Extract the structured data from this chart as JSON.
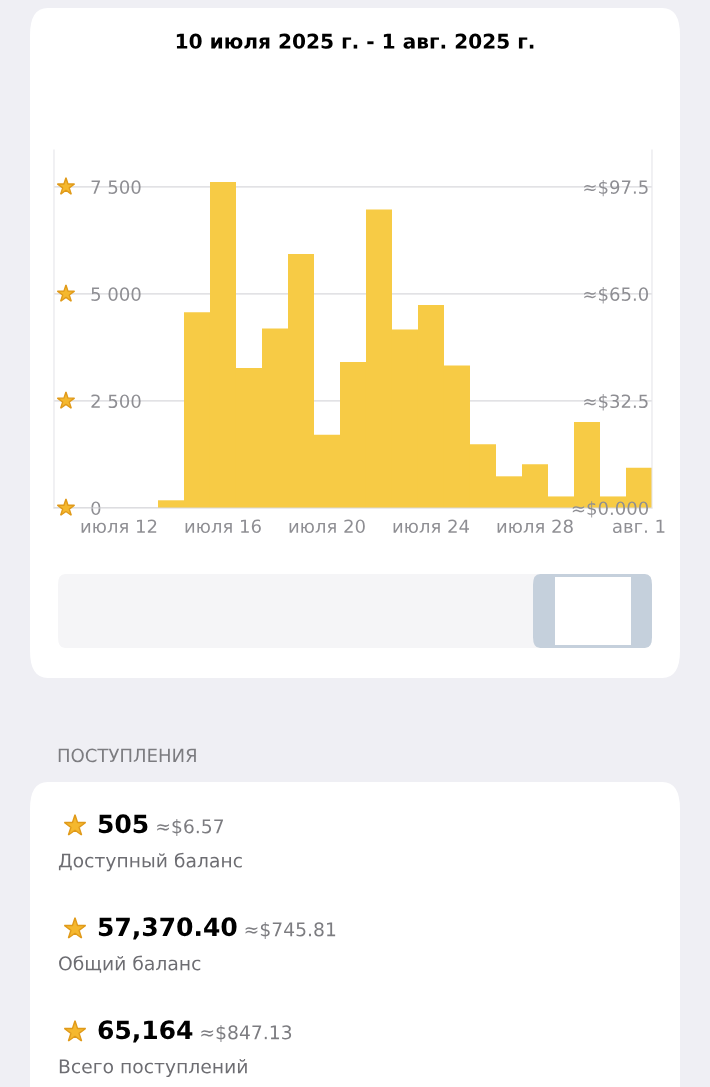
{
  "chart_data": [
    {
      "type": "bar",
      "title": "10 июля 2025 г. - 1 авг. 2025 г.",
      "categories": [
        null,
        null,
        "июля 12",
        null,
        null,
        null,
        "июля 16",
        null,
        null,
        null,
        "июля 20",
        null,
        null,
        null,
        "июля 24",
        null,
        null,
        null,
        "июля 28",
        null,
        null,
        null,
        "авг. 1"
      ],
      "values": [
        0,
        0,
        0,
        0,
        180,
        4570,
        7610,
        3270,
        4190,
        5930,
        1710,
        3410,
        6970,
        4170,
        4740,
        3330,
        1490,
        740,
        1020,
        270,
        2010,
        270,
        940
      ],
      "color": "#f7cb45",
      "ylim": [
        0,
        8360
      ],
      "yticks": [
        {
          "value": 0,
          "label": "0"
        },
        {
          "value": 2500,
          "label": "2 500"
        },
        {
          "value": 5000,
          "label": "5 000"
        },
        {
          "value": 7500,
          "label": "7 500"
        }
      ],
      "y2lim": [
        0,
        108.68
      ],
      "y2ticks": [
        {
          "value": 0,
          "label": "≈$0.000"
        },
        {
          "value": 32.5,
          "label": "≈$32.5"
        },
        {
          "value": 65.0,
          "label": "≈$65.0"
        },
        {
          "value": 97.5,
          "label": "≈$97.5"
        }
      ],
      "grid": "y"
    },
    {
      "type": "other",
      "title": "ПОСТУПЛЕНИЯ",
      "annotations": [
        "505",
        "≈$6.57",
        "Доступный баланс",
        "57,370.40",
        "≈$745.81",
        "Общий баланс",
        "65,164",
        "≈$847.13",
        "Всего поступлений"
      ]
    }
  ]
}
